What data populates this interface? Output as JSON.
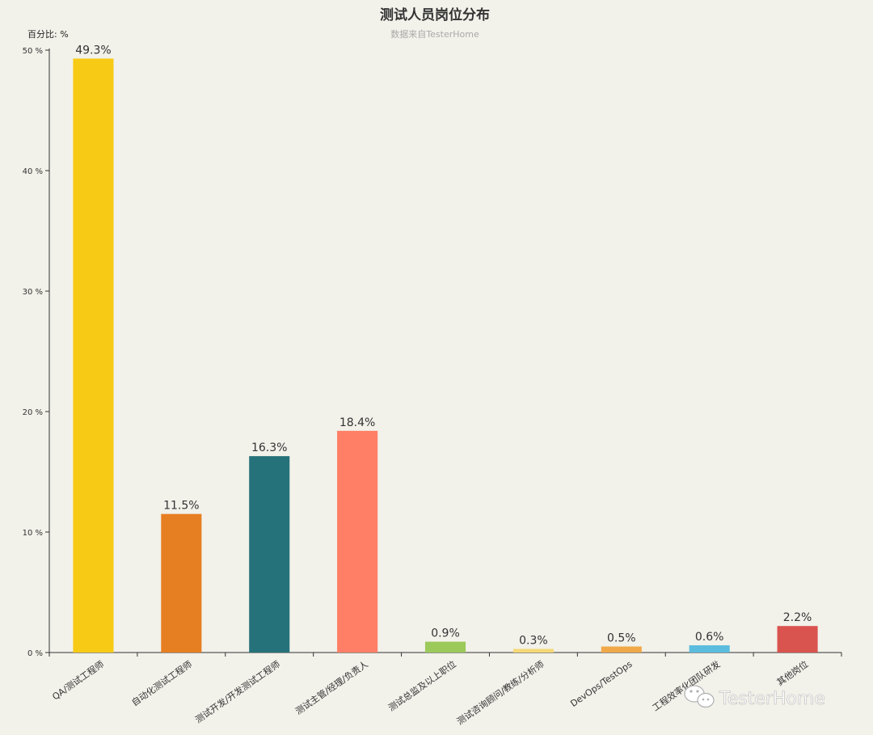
{
  "chart_data": {
    "type": "bar",
    "title": "测试人员岗位分布",
    "subtitle": "数据来自TesterHome",
    "ylabel": "百分比: %",
    "ylim": [
      0,
      50
    ],
    "yticks": [
      0,
      10,
      20,
      30,
      40,
      50
    ],
    "ytick_labels": [
      "0 %",
      "10 %",
      "20 %",
      "30 %",
      "40 %",
      "50 %"
    ],
    "categories": [
      "QA/测试工程师",
      "自动化测试工程师",
      "测试开发/开发测试工程师",
      "测试主管/经理/负责人",
      "测试总监及以上职位",
      "测试咨询顾问/教练/分析师",
      "DevOps/TestOps",
      "工程效率化团队研发",
      "其他岗位"
    ],
    "values": [
      49.3,
      11.5,
      16.3,
      18.4,
      0.9,
      0.3,
      0.5,
      0.6,
      2.2
    ],
    "data_labels": [
      "49.3%",
      "11.5%",
      "16.3%",
      "18.4%",
      "0.9%",
      "0.3%",
      "0.5%",
      "0.6%",
      "2.2%"
    ],
    "colors": [
      "#f7cb15",
      "#e67e22",
      "#26727a",
      "#ff7f66",
      "#9bc95a",
      "#f5d876",
      "#f0a848",
      "#5bbcde",
      "#d9534f"
    ],
    "grid": false,
    "legend": "none"
  },
  "watermark": {
    "text": "TesterHome",
    "icon": "wechat-icon"
  }
}
